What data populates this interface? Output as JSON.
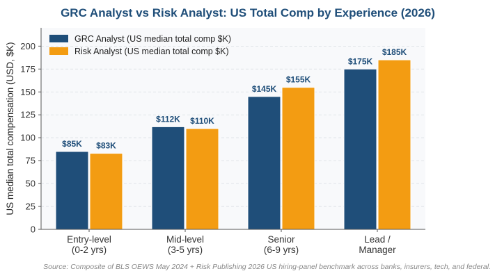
{
  "chart_data": {
    "type": "bar",
    "title": "GRC Analyst vs Risk Analyst: US Total Comp by Experience (2026)",
    "xlabel": "",
    "ylabel": "US median total compensation (USD, $K)",
    "categories": [
      [
        "Entry-level",
        "(0-2 yrs)"
      ],
      [
        "Mid-level",
        "(3-5 yrs)"
      ],
      [
        "Senior",
        "(6-9 yrs)"
      ],
      [
        "Lead /",
        "Manager"
      ]
    ],
    "series": [
      {
        "name": "GRC Analyst (US median total comp $K)",
        "values": [
          85,
          112,
          145,
          175
        ],
        "labels": [
          "$85K",
          "$112K",
          "$145K",
          "$175K"
        ],
        "color": "#1f4e79",
        "label_color": "#1f4e79"
      },
      {
        "name": "Risk Analyst (US median total comp $K)",
        "values": [
          83,
          110,
          155,
          185
        ],
        "labels": [
          "$83K",
          "$110K",
          "$155K",
          "$185K"
        ],
        "color": "#f39c12",
        "label_color": "#1f4e79"
      }
    ],
    "ylim": [
      0,
      220
    ],
    "yticks": [
      0,
      25,
      50,
      75,
      100,
      125,
      150,
      175,
      200
    ],
    "grid": true,
    "legend": "top-left",
    "source": "Source: Composite of BLS OEWS May 2024 + Risk Publishing 2026 US hiring-panel benchmark across banks, insurers, tech, and federal."
  }
}
